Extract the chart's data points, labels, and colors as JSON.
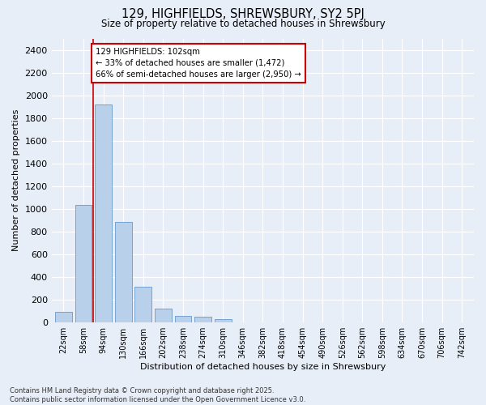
{
  "title_line1": "129, HIGHFIELDS, SHREWSBURY, SY2 5PJ",
  "title_line2": "Size of property relative to detached houses in Shrewsbury",
  "xlabel": "Distribution of detached houses by size in Shrewsbury",
  "ylabel": "Number of detached properties",
  "categories": [
    "22sqm",
    "58sqm",
    "94sqm",
    "130sqm",
    "166sqm",
    "202sqm",
    "238sqm",
    "274sqm",
    "310sqm",
    "346sqm",
    "382sqm",
    "418sqm",
    "454sqm",
    "490sqm",
    "526sqm",
    "562sqm",
    "598sqm",
    "634sqm",
    "670sqm",
    "706sqm",
    "742sqm"
  ],
  "values": [
    90,
    1030,
    1920,
    880,
    310,
    120,
    58,
    50,
    30,
    0,
    0,
    0,
    0,
    0,
    0,
    0,
    0,
    0,
    0,
    0,
    0
  ],
  "bar_color": "#b8d0ea",
  "bar_edge_color": "#6699cc",
  "background_color": "#e8eef8",
  "grid_color": "#ffffff",
  "annotation_text": "129 HIGHFIELDS: 102sqm\n← 33% of detached houses are smaller (1,472)\n66% of semi-detached houses are larger (2,950) →",
  "vline_x_index": 2,
  "vline_color": "#cc0000",
  "annotation_box_color": "#cc0000",
  "ylim": [
    0,
    2500
  ],
  "yticks": [
    0,
    200,
    400,
    600,
    800,
    1000,
    1200,
    1400,
    1600,
    1800,
    2000,
    2200,
    2400
  ],
  "footer_line1": "Contains HM Land Registry data © Crown copyright and database right 2025.",
  "footer_line2": "Contains public sector information licensed under the Open Government Licence v3.0.",
  "figsize": [
    6.0,
    5.0
  ],
  "dpi": 100
}
